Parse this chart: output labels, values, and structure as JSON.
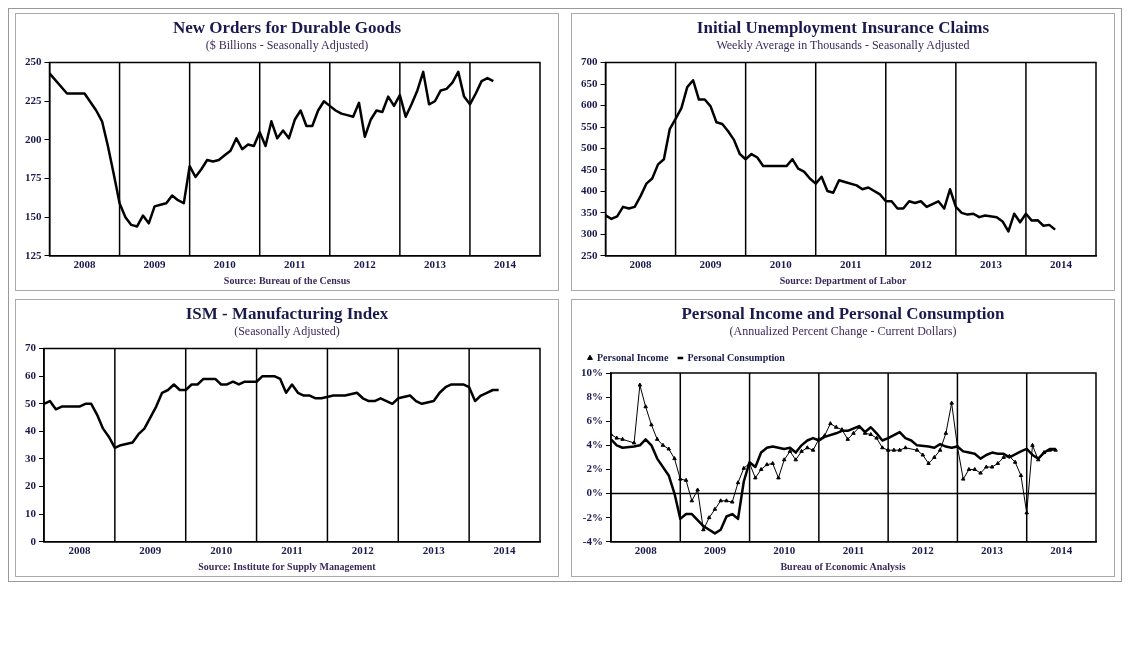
{
  "chart_data": [
    {
      "type": "line",
      "title": "New Orders for Durable Goods",
      "subtitle": "($ Billions - Seasonally Adjusted)",
      "annotations": [
        "Source: Bureau of the Census"
      ],
      "x": [
        "2008-01",
        "2008-04",
        "2008-07",
        "2008-09",
        "2008-10",
        "2008-11",
        "2008-12",
        "2009-01",
        "2009-02",
        "2009-03",
        "2009-04",
        "2009-05",
        "2009-06",
        "2009-07",
        "2009-08",
        "2009-09",
        "2009-10",
        "2009-11",
        "2009-12",
        "2010-01",
        "2010-02",
        "2010-03",
        "2010-04",
        "2010-05",
        "2010-06",
        "2010-07",
        "2010-08",
        "2010-09",
        "2010-10",
        "2010-11",
        "2010-12",
        "2011-01",
        "2011-02",
        "2011-03",
        "2011-04",
        "2011-05",
        "2011-06",
        "2011-07",
        "2011-08",
        "2011-09",
        "2011-10",
        "2011-11",
        "2011-12",
        "2012-01",
        "2012-02",
        "2012-03",
        "2012-04",
        "2012-05",
        "2012-06",
        "2012-07",
        "2012-08",
        "2012-09",
        "2012-10",
        "2012-11",
        "2012-12",
        "2013-01",
        "2013-02",
        "2013-03",
        "2013-04",
        "2013-05",
        "2013-06",
        "2013-07",
        "2013-08",
        "2013-09",
        "2013-10",
        "2013-11",
        "2013-12",
        "2014-01",
        "2014-02",
        "2014-03",
        "2014-04",
        "2014-05"
      ],
      "values": [
        243,
        230,
        230,
        219,
        212,
        196,
        178,
        159,
        150,
        145,
        144,
        151,
        146,
        157,
        158,
        159,
        164,
        161,
        159,
        183,
        176,
        181,
        187,
        186,
        187,
        190,
        193,
        201,
        194,
        197,
        196,
        205,
        196,
        212,
        201,
        206,
        201,
        213,
        219,
        209,
        209,
        219,
        225,
        222,
        219,
        217,
        216,
        215,
        224,
        202,
        213,
        219,
        218,
        228,
        222,
        229,
        215,
        223,
        232,
        244,
        223,
        225,
        232,
        233,
        237,
        244,
        228,
        223,
        230,
        238,
        240,
        238
      ],
      "color": "#000000",
      "xlim": [
        "2008-01",
        "2015-01"
      ],
      "xticks": [
        {
          "value": "2008-07",
          "label": "2008"
        },
        {
          "value": "2009-07",
          "label": "2009"
        },
        {
          "value": "2010-07",
          "label": "2010"
        },
        {
          "value": "2011-07",
          "label": "2011"
        },
        {
          "value": "2012-07",
          "label": "2012"
        },
        {
          "value": "2013-07",
          "label": "2013"
        },
        {
          "value": "2014-07",
          "label": "2014"
        }
      ],
      "ylim": [
        125,
        250
      ],
      "yticks": [
        125,
        150,
        175,
        200,
        225,
        250
      ],
      "grid": false,
      "ref_lines": [
        {
          "axis": "x",
          "value": "2009-01"
        },
        {
          "axis": "x",
          "value": "2010-01"
        },
        {
          "axis": "x",
          "value": "2011-01"
        },
        {
          "axis": "x",
          "value": "2012-01"
        },
        {
          "axis": "x",
          "value": "2013-01"
        },
        {
          "axis": "x",
          "value": "2014-01"
        }
      ]
    },
    {
      "type": "line",
      "title": "Initial Unemployment Insurance Claims",
      "subtitle": "Weekly Average in Thousands - Seasonally Adjusted",
      "annotations": [
        "Source: Department of Labor"
      ],
      "x": [
        "2008-01",
        "2008-02",
        "2008-03",
        "2008-04",
        "2008-05",
        "2008-06",
        "2008-07",
        "2008-08",
        "2008-09",
        "2008-10",
        "2008-11",
        "2008-12",
        "2009-01",
        "2009-02",
        "2009-03",
        "2009-04",
        "2009-05",
        "2009-06",
        "2009-07",
        "2009-08",
        "2009-09",
        "2009-10",
        "2009-11",
        "2009-12",
        "2010-01",
        "2010-02",
        "2010-03",
        "2010-04",
        "2010-05",
        "2010-07",
        "2010-08",
        "2010-09",
        "2010-10",
        "2010-11",
        "2010-12",
        "2011-01",
        "2011-02",
        "2011-03",
        "2011-04",
        "2011-05",
        "2011-06",
        "2011-08",
        "2011-09",
        "2011-10",
        "2011-12",
        "2012-01",
        "2012-02",
        "2012-03",
        "2012-04",
        "2012-05",
        "2012-06",
        "2012-07",
        "2012-08",
        "2012-10",
        "2012-11",
        "2012-12",
        "2013-01",
        "2013-02",
        "2013-03",
        "2013-04",
        "2013-05",
        "2013-06",
        "2013-08",
        "2013-09",
        "2013-10",
        "2013-11",
        "2013-12",
        "2014-01",
        "2014-02",
        "2014-03",
        "2014-04",
        "2014-05",
        "2014-06"
      ],
      "values": [
        344,
        336,
        342,
        364,
        360,
        364,
        389,
        418,
        430,
        463,
        475,
        545,
        569,
        594,
        643,
        659,
        614,
        614,
        598,
        561,
        557,
        540,
        520,
        487,
        475,
        487,
        479,
        459,
        459,
        459,
        459,
        475,
        453,
        446,
        430,
        418,
        434,
        401,
        397,
        426,
        422,
        414,
        405,
        409,
        393,
        377,
        377,
        360,
        360,
        377,
        373,
        377,
        364,
        377,
        360,
        405,
        364,
        350,
        346,
        348,
        340,
        344,
        340,
        330,
        307,
        348,
        328,
        348,
        332,
        333,
        320,
        322,
        311
      ],
      "color": "#000000",
      "xlim": [
        "2008-01",
        "2015-01"
      ],
      "xticks": [
        {
          "value": "2008-07",
          "label": "2008"
        },
        {
          "value": "2009-07",
          "label": "2009"
        },
        {
          "value": "2010-07",
          "label": "2010"
        },
        {
          "value": "2011-07",
          "label": "2011"
        },
        {
          "value": "2012-07",
          "label": "2012"
        },
        {
          "value": "2013-07",
          "label": "2013"
        },
        {
          "value": "2014-07",
          "label": "2014"
        }
      ],
      "ylim": [
        250,
        700
      ],
      "yticks": [
        250,
        300,
        350,
        400,
        450,
        500,
        550,
        600,
        650,
        700
      ],
      "grid": false,
      "ref_lines": [
        {
          "axis": "x",
          "value": "2009-01"
        },
        {
          "axis": "x",
          "value": "2010-01"
        },
        {
          "axis": "x",
          "value": "2011-01"
        },
        {
          "axis": "x",
          "value": "2012-01"
        },
        {
          "axis": "x",
          "value": "2013-01"
        },
        {
          "axis": "x",
          "value": "2014-01"
        }
      ]
    },
    {
      "type": "line",
      "title": "ISM - Manufacturing Index",
      "subtitle": "(Seasonally Adjusted)",
      "annotations": [
        "Source: Institute for Supply Management"
      ],
      "x": [
        "2008-01",
        "2008-02",
        "2008-03",
        "2008-04",
        "2008-05",
        "2008-07",
        "2008-08",
        "2008-09",
        "2008-10",
        "2008-11",
        "2008-12",
        "2009-01",
        "2009-02",
        "2009-04",
        "2009-05",
        "2009-06",
        "2009-07",
        "2009-08",
        "2009-09",
        "2009-10",
        "2009-11",
        "2009-12",
        "2010-01",
        "2010-02",
        "2010-03",
        "2010-04",
        "2010-05",
        "2010-06",
        "2010-07",
        "2010-08",
        "2010-09",
        "2010-10",
        "2010-11",
        "2010-12",
        "2011-01",
        "2011-02",
        "2011-03",
        "2011-04",
        "2011-05",
        "2011-06",
        "2011-07",
        "2011-08",
        "2011-09",
        "2011-10",
        "2011-11",
        "2011-12",
        "2012-02",
        "2012-03",
        "2012-04",
        "2012-06",
        "2012-07",
        "2012-08",
        "2012-09",
        "2012-10",
        "2012-11",
        "2012-12",
        "2013-01",
        "2013-03",
        "2013-04",
        "2013-05",
        "2013-07",
        "2013-08",
        "2013-09",
        "2013-10",
        "2013-11",
        "2013-12",
        "2014-01",
        "2014-02",
        "2014-03",
        "2014-04",
        "2014-05",
        "2014-06"
      ],
      "values": [
        50,
        51,
        48,
        49,
        49,
        49,
        50,
        50,
        46,
        41,
        38,
        34,
        35,
        36,
        39,
        41,
        45,
        49,
        54,
        55,
        57,
        55,
        55,
        57,
        57,
        59,
        59,
        59,
        57,
        57,
        58,
        57,
        58,
        58,
        58,
        60,
        60,
        60,
        59,
        54,
        57,
        54,
        53,
        53,
        52,
        52,
        53,
        53,
        53,
        54,
        52,
        51,
        51,
        52,
        51,
        50,
        52,
        53,
        51,
        50,
        51,
        54,
        56,
        57,
        57,
        57,
        56,
        51,
        53,
        54,
        55,
        55
      ],
      "color": "#000000",
      "xlim": [
        "2008-01",
        "2015-01"
      ],
      "xticks": [
        {
          "value": "2008-07",
          "label": "2008"
        },
        {
          "value": "2009-07",
          "label": "2009"
        },
        {
          "value": "2010-07",
          "label": "2010"
        },
        {
          "value": "2011-07",
          "label": "2011"
        },
        {
          "value": "2012-07",
          "label": "2012"
        },
        {
          "value": "2013-07",
          "label": "2013"
        },
        {
          "value": "2014-07",
          "label": "2014"
        }
      ],
      "ylim": [
        0,
        70
      ],
      "yticks": [
        0,
        10,
        20,
        30,
        40,
        50,
        60,
        70
      ],
      "grid": false,
      "ref_lines": [
        {
          "axis": "x",
          "value": "2009-01"
        },
        {
          "axis": "x",
          "value": "2010-01"
        },
        {
          "axis": "x",
          "value": "2011-01"
        },
        {
          "axis": "x",
          "value": "2012-01"
        },
        {
          "axis": "x",
          "value": "2013-01"
        },
        {
          "axis": "x",
          "value": "2014-01"
        }
      ]
    },
    {
      "type": "line",
      "title": "Personal Income and Personal Consumption",
      "subtitle": "(Annualized Percent Change - Current Dollars)",
      "annotations": [
        "Bureau of Economic Analysis"
      ],
      "series": [
        {
          "name": "Personal Income",
          "color": "#000000",
          "marker": "triangle",
          "x": [
            "2008-01",
            "2008-02",
            "2008-03",
            "2008-05",
            "2008-06",
            "2008-07",
            "2008-08",
            "2008-09",
            "2008-10",
            "2008-11",
            "2008-12",
            "2009-01",
            "2009-02",
            "2009-03",
            "2009-04",
            "2009-05",
            "2009-06",
            "2009-07",
            "2009-08",
            "2009-09",
            "2009-10",
            "2009-11",
            "2009-12",
            "2010-01",
            "2010-02",
            "2010-03",
            "2010-04",
            "2010-05",
            "2010-06",
            "2010-07",
            "2010-08",
            "2010-09",
            "2010-10",
            "2010-11",
            "2010-12",
            "2011-01",
            "2011-02",
            "2011-03",
            "2011-04",
            "2011-05",
            "2011-06",
            "2011-07",
            "2011-08",
            "2011-09",
            "2011-10",
            "2011-11",
            "2011-12",
            "2012-01",
            "2012-02",
            "2012-03",
            "2012-04",
            "2012-06",
            "2012-07",
            "2012-08",
            "2012-09",
            "2012-10",
            "2012-11",
            "2012-12",
            "2013-01",
            "2013-02",
            "2013-03",
            "2013-04",
            "2013-05",
            "2013-06",
            "2013-07",
            "2013-08",
            "2013-09",
            "2013-10",
            "2013-11",
            "2013-12",
            "2014-01",
            "2014-02",
            "2014-03",
            "2014-04",
            "2014-05",
            "2014-06"
          ],
          "values": [
            4.9,
            4.6,
            4.5,
            4.2,
            9.0,
            7.2,
            5.7,
            4.5,
            4.0,
            3.7,
            2.9,
            1.2,
            1.1,
            -0.6,
            0.3,
            -3.0,
            -2.0,
            -1.3,
            -0.6,
            -0.6,
            -0.7,
            0.9,
            2.1,
            2.5,
            1.3,
            2.0,
            2.4,
            2.5,
            1.3,
            2.8,
            3.5,
            2.8,
            3.5,
            3.8,
            3.6,
            4.5,
            4.8,
            5.8,
            5.5,
            5.3,
            4.5,
            5.0,
            5.5,
            5.0,
            4.9,
            4.6,
            3.8,
            3.6,
            3.6,
            3.6,
            3.8,
            3.6,
            3.2,
            2.5,
            3.0,
            3.6,
            5.0,
            7.5,
            3.9,
            1.2,
            2.0,
            2.0,
            1.7,
            2.2,
            2.2,
            2.5,
            3.0,
            3.1,
            2.6,
            1.5,
            -1.6,
            4.0,
            2.8,
            3.4,
            3.6,
            3.6
          ]
        },
        {
          "name": "Personal Consumption",
          "color": "#000000",
          "marker": "none",
          "x": [
            "2008-01",
            "2008-02",
            "2008-03",
            "2008-05",
            "2008-06",
            "2008-07",
            "2008-08",
            "2008-09",
            "2008-11",
            "2008-12",
            "2009-01",
            "2009-02",
            "2009-03",
            "2009-04",
            "2009-05",
            "2009-06",
            "2009-07",
            "2009-08",
            "2009-09",
            "2009-10",
            "2009-11",
            "2009-12",
            "2010-01",
            "2010-02",
            "2010-03",
            "2010-04",
            "2010-05",
            "2010-07",
            "2010-08",
            "2010-09",
            "2010-10",
            "2010-11",
            "2010-12",
            "2011-01",
            "2011-02",
            "2011-04",
            "2011-05",
            "2011-06",
            "2011-08",
            "2011-09",
            "2011-10",
            "2011-11",
            "2011-12",
            "2012-01",
            "2012-03",
            "2012-04",
            "2012-05",
            "2012-06",
            "2012-08",
            "2012-09",
            "2012-10",
            "2012-11",
            "2012-12",
            "2013-01",
            "2013-02",
            "2013-03",
            "2013-04",
            "2013-05",
            "2013-06",
            "2013-07",
            "2013-08",
            "2013-09",
            "2013-10",
            "2013-12",
            "2014-01",
            "2014-02",
            "2014-03",
            "2014-04",
            "2014-05",
            "2014-06"
          ],
          "values": [
            4.5,
            4.0,
            3.8,
            3.9,
            4.0,
            4.5,
            4.0,
            2.9,
            1.5,
            0,
            -2.1,
            -1.7,
            -1.7,
            -2.2,
            -2.7,
            -3.0,
            -3.3,
            -3.0,
            -1.9,
            -1.7,
            -2.1,
            1.0,
            2.6,
            2.2,
            3.4,
            3.8,
            3.9,
            3.7,
            3.8,
            3.4,
            4.0,
            4.4,
            4.6,
            4.4,
            4.7,
            5.0,
            5.2,
            5.2,
            5.6,
            5.1,
            5.5,
            5.0,
            4.4,
            4.6,
            5.1,
            4.6,
            4.4,
            4.0,
            3.9,
            3.8,
            4.1,
            3.9,
            3.8,
            3.9,
            3.5,
            3.4,
            3.3,
            2.9,
            3.2,
            3.4,
            3.3,
            3.3,
            3.0,
            3.5,
            3.7,
            3.2,
            2.9,
            3.4,
            3.7,
            3.7
          ]
        }
      ],
      "legend": "top left",
      "xlim": [
        "2008-01",
        "2015-01"
      ],
      "xticks": [
        {
          "value": "2008-07",
          "label": "2008"
        },
        {
          "value": "2009-07",
          "label": "2009"
        },
        {
          "value": "2010-07",
          "label": "2010"
        },
        {
          "value": "2011-07",
          "label": "2011"
        },
        {
          "value": "2012-07",
          "label": "2012"
        },
        {
          "value": "2013-07",
          "label": "2013"
        },
        {
          "value": "2014-07",
          "label": "2014"
        }
      ],
      "ylim": [
        -4,
        10
      ],
      "yticks": [
        {
          "value": -4,
          "label": "-4%"
        },
        {
          "value": -2,
          "label": "-2%"
        },
        {
          "value": 0,
          "label": "0%"
        },
        {
          "value": 2,
          "label": "2%"
        },
        {
          "value": 4,
          "label": "4%"
        },
        {
          "value": 6,
          "label": "6%"
        },
        {
          "value": 8,
          "label": "8%"
        },
        {
          "value": 10,
          "label": "10%"
        }
      ],
      "grid": false,
      "ref_lines": [
        {
          "axis": "y",
          "value": 0
        },
        {
          "axis": "x",
          "value": "2009-01"
        },
        {
          "axis": "x",
          "value": "2010-01"
        },
        {
          "axis": "x",
          "value": "2011-01"
        },
        {
          "axis": "x",
          "value": "2012-01"
        },
        {
          "axis": "x",
          "value": "2013-01"
        },
        {
          "axis": "x",
          "value": "2014-01"
        }
      ]
    }
  ]
}
